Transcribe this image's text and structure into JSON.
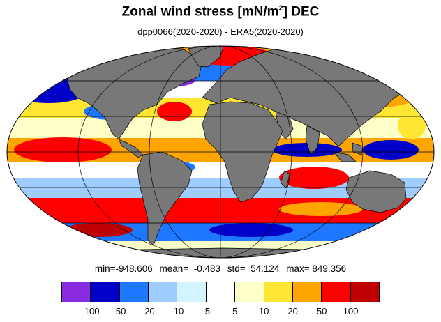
{
  "title": {
    "main": "Zonal wind stress [mN/m",
    "sup": "2",
    "tail": "] DEC"
  },
  "subtitle": "dpp0066(2020-2020) - ERA5(2020-2020)",
  "stats": {
    "min": "min=-948.606",
    "mean": "mean=  -0.483",
    "std": "std=  54.124",
    "max": "max= 849.356"
  },
  "colorbar": {
    "colors": [
      "#8a2be2",
      "#0000c8",
      "#1e78ff",
      "#a0cdff",
      "#d2f5ff",
      "#ffffff",
      "#ffffc8",
      "#ffe632",
      "#ffa500",
      "#ff0000",
      "#be0000"
    ],
    "tick_labels": [
      "-100",
      "-50",
      "-20",
      "-10",
      "-5",
      "5",
      "10",
      "20",
      "50",
      "100"
    ]
  },
  "map": {
    "land_color": "#787878",
    "projection": "mollweide"
  }
}
